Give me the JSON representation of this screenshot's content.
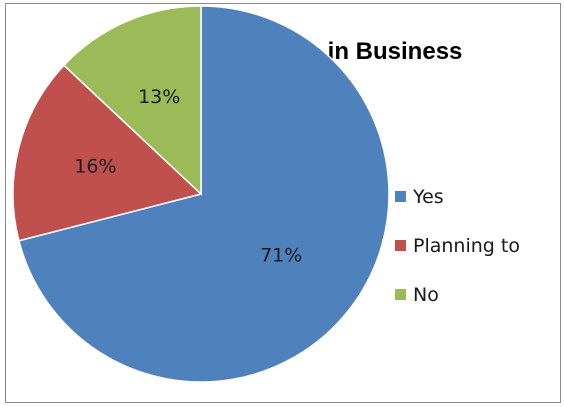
{
  "chart_data": {
    "type": "pie",
    "title": "Use of Social Media in Business",
    "legend_position": "right",
    "slices": [
      {
        "name": "Yes",
        "value": 71,
        "label": "71%",
        "color": "#4f81bd"
      },
      {
        "name": "Planning to",
        "value": 16,
        "label": "16%",
        "color": "#c0504d"
      },
      {
        "name": "No",
        "value": 13,
        "label": "13%",
        "color": "#9bbb59"
      }
    ]
  }
}
